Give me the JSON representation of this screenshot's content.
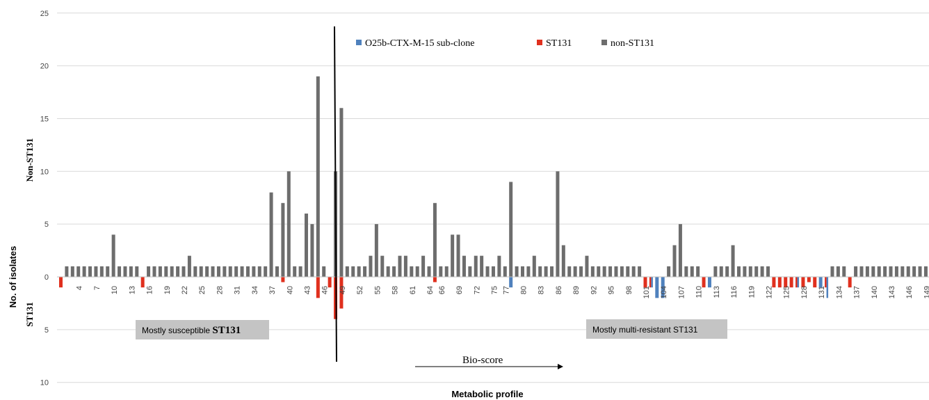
{
  "chart_data": {
    "type": "bar",
    "xlabel": "Metabolic profile",
    "ylabel": "No. of isolates",
    "ylabel_upper": "Non-ST131",
    "ylabel_lower": "ST131",
    "y_ticks_upper": [
      "25",
      "20",
      "15",
      "10",
      "5",
      "0"
    ],
    "y_ticks_lower": [
      "5",
      "10"
    ],
    "ylim": [
      -10,
      25
    ],
    "x_tick_labels": [
      "4",
      "7",
      "10",
      "13",
      "16",
      "19",
      "22",
      "25",
      "28",
      "31",
      "34",
      "37",
      "40",
      "43",
      "46",
      "49",
      "52",
      "55",
      "58",
      "61",
      "64",
      "66",
      "69",
      "72",
      "75",
      "77",
      "80",
      "83",
      "86",
      "89",
      "92",
      "95",
      "98",
      "101",
      "104",
      "107",
      "110",
      "113",
      "116",
      "119",
      "122",
      "125",
      "128",
      "131",
      "134",
      "137",
      "140",
      "143",
      "146",
      "149"
    ],
    "legend": [
      {
        "name": "O25b-CTX-M-15 sub-clone",
        "color": "#4f81bd"
      },
      {
        "name": "ST131",
        "color": "#e0301e"
      },
      {
        "name": "non-ST131",
        "color": "#6d6d6d"
      }
    ],
    "series": [
      {
        "name": "non-ST131",
        "color": "#6d6d6d",
        "values": [
          0,
          1,
          1,
          1,
          1,
          1,
          1,
          1,
          1,
          4,
          1,
          1,
          1,
          1,
          0,
          1,
          1,
          1,
          1,
          1,
          1,
          1,
          2,
          1,
          1,
          1,
          1,
          1,
          1,
          1,
          1,
          1,
          1,
          1,
          1,
          1,
          8,
          1,
          7,
          10,
          1,
          1,
          6,
          5,
          19,
          1,
          0,
          10,
          16,
          1,
          1,
          1,
          1,
          2,
          5,
          2,
          1,
          1,
          2,
          2,
          1,
          1,
          2,
          1,
          7,
          1,
          1,
          4,
          4,
          2,
          1,
          2,
          2,
          1,
          1,
          2,
          1,
          9,
          1,
          1,
          1,
          2,
          1,
          1,
          1,
          10,
          3,
          1,
          1,
          1,
          2,
          1,
          1,
          1,
          1,
          1,
          1,
          1,
          1,
          1,
          0,
          0,
          0,
          0,
          1,
          3,
          5,
          1,
          1,
          1,
          0,
          0,
          1,
          1,
          1,
          3,
          1,
          1,
          1,
          1,
          1,
          1,
          0,
          0,
          0,
          0,
          0,
          0,
          0,
          0,
          0,
          0,
          1,
          1,
          1,
          0,
          1,
          1,
          1,
          1,
          1,
          1,
          1,
          1,
          1,
          1,
          1,
          1,
          1,
          1
        ]
      },
      {
        "name": "ST131",
        "color": "#e0301e",
        "values": [
          1,
          0,
          0,
          0,
          0,
          0,
          0,
          0,
          0,
          0,
          0,
          0,
          0,
          0,
          1,
          0,
          0,
          0,
          0,
          0,
          0,
          0,
          0,
          0,
          0,
          0,
          0,
          0,
          0,
          0,
          0,
          0,
          0,
          0,
          0,
          0,
          0,
          0,
          0.5,
          0,
          0,
          0,
          0,
          0,
          2,
          0,
          1,
          4,
          3,
          0,
          0,
          0,
          0,
          0,
          0,
          0,
          0,
          0,
          0,
          0,
          0,
          0,
          0,
          0,
          0.5,
          0,
          0,
          0,
          0,
          0,
          0,
          0,
          0,
          0,
          0,
          0,
          0,
          0,
          0,
          0,
          0,
          0,
          0,
          0,
          0,
          0,
          0,
          0,
          0,
          0,
          0,
          0,
          0,
          0,
          0,
          0,
          0,
          0,
          0,
          0,
          1,
          1,
          0,
          0,
          0,
          0,
          0,
          0,
          0,
          0,
          1,
          0,
          0,
          0,
          0,
          0,
          0,
          0,
          0,
          0,
          0,
          0,
          1,
          1,
          1,
          1,
          1,
          1,
          0.5,
          1,
          0,
          1,
          0,
          0,
          0,
          1,
          0,
          0,
          0,
          0,
          0,
          0,
          0,
          0,
          0,
          0,
          0,
          0,
          0,
          0
        ]
      },
      {
        "name": "O25b-CTX-M-15 sub-clone",
        "color": "#4f81bd",
        "values": [
          0,
          0,
          0,
          0,
          0,
          0,
          0,
          0,
          0,
          0,
          0,
          0,
          0,
          0,
          0,
          0,
          0,
          0,
          0,
          0,
          0,
          0,
          0,
          0,
          0,
          0,
          0,
          0,
          0,
          0,
          0,
          0,
          0,
          0,
          0,
          0,
          0,
          0,
          0,
          0,
          0,
          0,
          0,
          0,
          0,
          0,
          0,
          0,
          0,
          0,
          0,
          0,
          0,
          0,
          0,
          0,
          0,
          0,
          0,
          0,
          0,
          0,
          0,
          0,
          0,
          0,
          0,
          0,
          0,
          0,
          0,
          0,
          0,
          0,
          0,
          0,
          0,
          1,
          0,
          0,
          0,
          0,
          0,
          0,
          0,
          0,
          0,
          0,
          0,
          0,
          0,
          0,
          0,
          0,
          0,
          0,
          0,
          0,
          0,
          0,
          0,
          1,
          2,
          2,
          0,
          0,
          0,
          0,
          0,
          0,
          0,
          1,
          0,
          0,
          0,
          0,
          0,
          0,
          0,
          0,
          0,
          0,
          0,
          0,
          0,
          0,
          1,
          0,
          0,
          0,
          1,
          2,
          0,
          0,
          0,
          0,
          0,
          0,
          0,
          0,
          0,
          0,
          0,
          0,
          0,
          0,
          0,
          0,
          0,
          0
        ]
      }
    ],
    "annotations": {
      "left_box_prefix": "Mostly susceptible ",
      "left_box_strong": "ST131",
      "right_box": "Mostly multi-resistant ST131",
      "arrow_label": "Bio-score"
    }
  }
}
